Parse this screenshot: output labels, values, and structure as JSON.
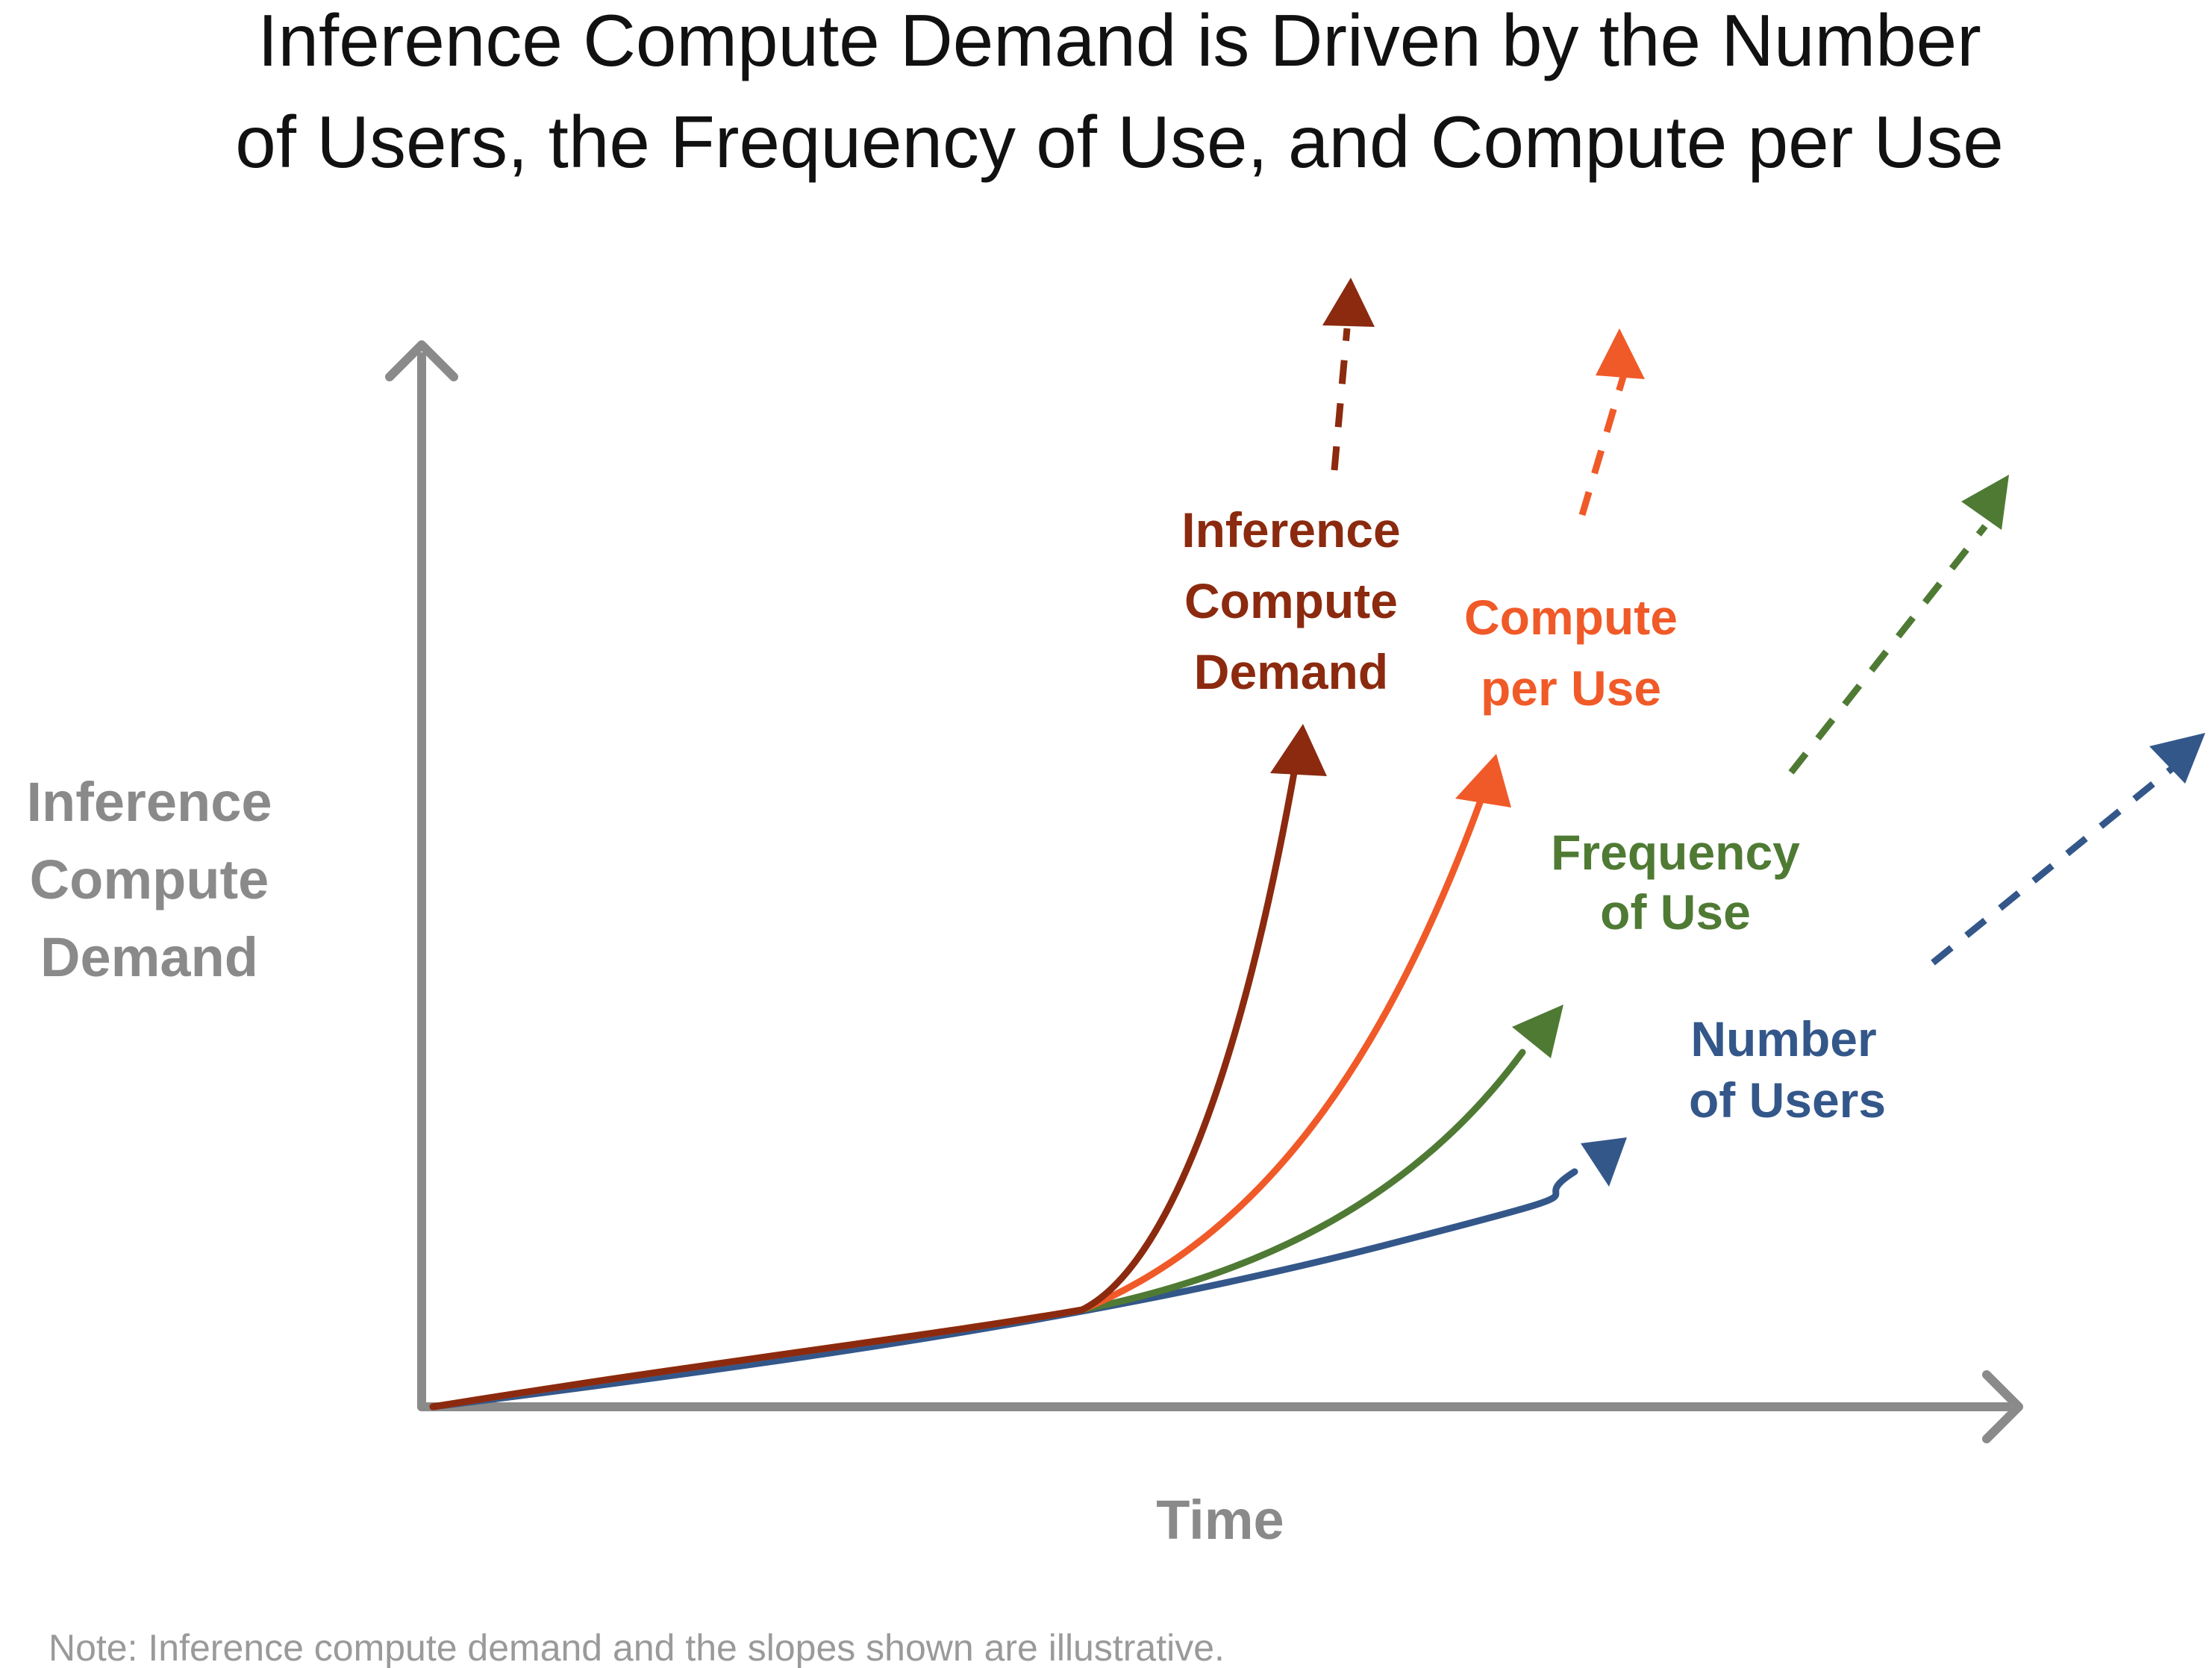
{
  "title_lines": [
    "Inference Compute Demand is Driven by the Number",
    "of Users, the Frequency of Use, and Compute per Use"
  ],
  "y_axis_label_lines": [
    "Inference",
    "Compute",
    "Demand"
  ],
  "x_axis_label": "Time",
  "note": "Note: Inference compute demand and the slopes shown are illustrative.",
  "colors": {
    "axis": "#8a8a8a",
    "inference_compute_demand": "#8b2a0f",
    "compute_per_use": "#f05a28",
    "frequency_of_use": "#4f7a34",
    "number_of_users": "#34578a"
  },
  "series": [
    {
      "key": "number_of_users",
      "label_lines": [
        "Number",
        "of Users"
      ]
    },
    {
      "key": "frequency_of_use",
      "label_lines": [
        "Frequency",
        "of Use"
      ]
    },
    {
      "key": "compute_per_use",
      "label_lines": [
        "Compute",
        "per Use"
      ]
    },
    {
      "key": "inference_compute_demand",
      "label_lines": [
        "Inference",
        "Compute",
        "Demand"
      ]
    }
  ]
}
